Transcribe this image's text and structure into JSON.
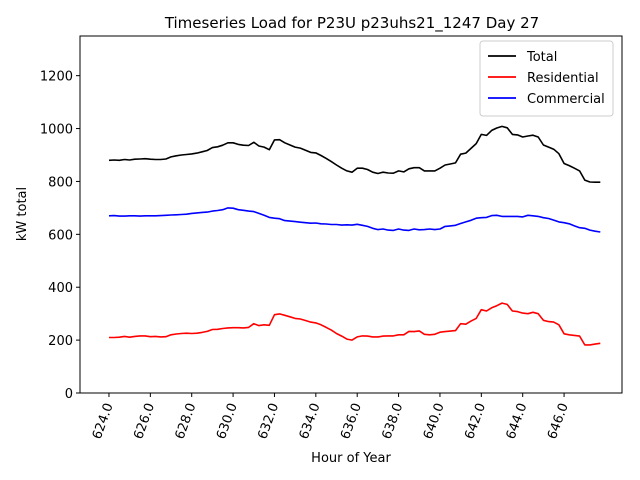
{
  "chart_data": {
    "type": "line",
    "title": "Timeseries Load for P23U p23uhs21_1247  Day 27",
    "xlabel": "Hour of Year",
    "ylabel": "kW total",
    "xlim": [
      622.6,
      648.8
    ],
    "ylim": [
      0,
      1350
    ],
    "xticks": [
      624,
      626,
      628,
      630,
      632,
      634,
      636,
      638,
      640,
      642,
      644,
      646
    ],
    "xtick_labels": [
      "624.0",
      "626.0",
      "628.0",
      "630.0",
      "632.0",
      "634.0",
      "636.0",
      "638.0",
      "640.0",
      "642.0",
      "644.0",
      "646.0"
    ],
    "yticks": [
      0,
      200,
      400,
      600,
      800,
      1000,
      1200
    ],
    "ytick_labels": [
      "0",
      "200",
      "400",
      "600",
      "800",
      "1000",
      "1200"
    ],
    "legend_position": "top-right",
    "x": [
      624.0,
      624.25,
      624.5,
      624.75,
      625.0,
      625.25,
      625.5,
      625.75,
      626.0,
      626.25,
      626.5,
      626.75,
      627.0,
      627.25,
      627.5,
      627.75,
      628.0,
      628.25,
      628.5,
      628.75,
      629.0,
      629.25,
      629.5,
      629.75,
      630.0,
      630.25,
      630.5,
      630.75,
      631.0,
      631.25,
      631.5,
      631.75,
      632.0,
      632.25,
      632.5,
      632.75,
      633.0,
      633.25,
      633.5,
      633.75,
      634.0,
      634.25,
      634.5,
      634.75,
      635.0,
      635.25,
      635.5,
      635.75,
      636.0,
      636.25,
      636.5,
      636.75,
      637.0,
      637.25,
      637.5,
      637.75,
      638.0,
      638.25,
      638.5,
      638.75,
      639.0,
      639.25,
      639.5,
      639.75,
      640.0,
      640.25,
      640.5,
      640.75,
      641.0,
      641.25,
      641.5,
      641.75,
      642.0,
      642.25,
      642.5,
      642.75,
      643.0,
      643.25,
      643.5,
      643.75,
      644.0,
      644.25,
      644.5,
      644.75,
      645.0,
      645.25,
      645.5,
      645.75,
      646.0,
      646.25,
      646.5,
      646.75,
      647.0,
      647.25,
      647.5,
      647.75
    ],
    "series": [
      {
        "name": "Total",
        "color": "#000000",
        "values": [
          880,
          881,
          880,
          883,
          881,
          884,
          885,
          886,
          884,
          883,
          883,
          885,
          893,
          897,
          900,
          902,
          904,
          907,
          912,
          917,
          928,
          931,
          937,
          946,
          946,
          940,
          937,
          936,
          948,
          934,
          930,
          920,
          957,
          958,
          946,
          938,
          930,
          926,
          918,
          910,
          908,
          898,
          887,
          875,
          862,
          850,
          840,
          835,
          850,
          850,
          845,
          835,
          830,
          835,
          832,
          831,
          840,
          836,
          848,
          852,
          852,
          840,
          840,
          840,
          850,
          862,
          866,
          870,
          903,
          907,
          925,
          943,
          978,
          974,
          993,
          1002,
          1008,
          1003,
          978,
          976,
          968,
          972,
          975,
          968,
          938,
          930,
          922,
          905,
          868,
          860,
          850,
          840,
          805,
          798,
          797,
          797
        ]
      },
      {
        "name": "Residential",
        "color": "#ff0000",
        "values": [
          210,
          210,
          211,
          214,
          211,
          214,
          216,
          216,
          213,
          214,
          212,
          213,
          220,
          223,
          225,
          226,
          225,
          226,
          229,
          233,
          240,
          241,
          244,
          246,
          247,
          247,
          246,
          248,
          262,
          255,
          258,
          256,
          296,
          299,
          294,
          288,
          282,
          280,
          274,
          268,
          265,
          258,
          248,
          238,
          225,
          215,
          204,
          200,
          212,
          216,
          215,
          212,
          212,
          215,
          216,
          216,
          220,
          220,
          233,
          232,
          235,
          222,
          220,
          222,
          230,
          232,
          234,
          236,
          262,
          260,
          272,
          282,
          315,
          310,
          322,
          330,
          340,
          335,
          310,
          308,
          302,
          300,
          305,
          300,
          275,
          270,
          268,
          258,
          224,
          220,
          218,
          215,
          182,
          182,
          185,
          188
        ]
      },
      {
        "name": "Commercial",
        "color": "#0000ff",
        "values": [
          670,
          671,
          669,
          669,
          670,
          670,
          669,
          670,
          670,
          670,
          671,
          672,
          673,
          674,
          675,
          676,
          679,
          681,
          683,
          684,
          688,
          690,
          693,
          700,
          699,
          693,
          691,
          688,
          686,
          679,
          672,
          664,
          661,
          659,
          652,
          650,
          648,
          646,
          644,
          642,
          643,
          640,
          639,
          637,
          637,
          635,
          636,
          635,
          638,
          634,
          630,
          623,
          618,
          620,
          616,
          615,
          620,
          616,
          615,
          620,
          617,
          618,
          620,
          618,
          620,
          630,
          632,
          634,
          641,
          647,
          653,
          661,
          663,
          664,
          671,
          672,
          668,
          668,
          668,
          668,
          666,
          672,
          670,
          668,
          663,
          660,
          654,
          647,
          644,
          640,
          632,
          625,
          623,
          616,
          612,
          609
        ]
      }
    ]
  }
}
